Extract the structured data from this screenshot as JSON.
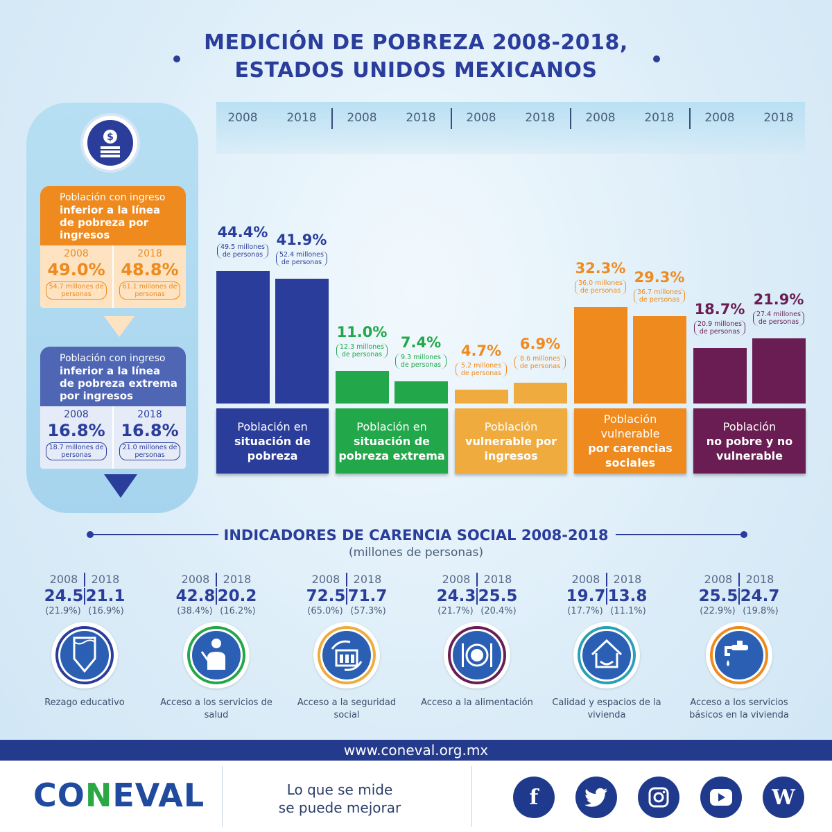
{
  "title": {
    "line1": "MEDICIÓN DE POBREZA 2008-2018,",
    "line2": "ESTADOS UNIDOS MEXICANOS"
  },
  "left_panel": {
    "icon": "money-coin-icon",
    "card1": {
      "label_normal": "Población con ingreso",
      "label_bold": "inferior a la línea de pobreza por ingresos",
      "years": [
        "2008",
        "2018"
      ],
      "pcts": [
        "49.0%",
        "48.8%"
      ],
      "millions": [
        "54.7 millones de personas",
        "61.1 millones de personas"
      ],
      "color": "#ee8a1e"
    },
    "card2": {
      "label_normal": "Población con ingreso",
      "label_bold": "inferior a la línea de pobreza extrema por ingresos",
      "years": [
        "2008",
        "2018"
      ],
      "pcts": [
        "16.8%",
        "16.8%"
      ],
      "millions": [
        "18.7 millones de personas",
        "21.0 millones de personas"
      ],
      "color": "#4e66b4"
    }
  },
  "chart_data": {
    "type": "bar",
    "categories": [
      "Población en situación de pobreza",
      "Población en situación de pobreza extrema",
      "Población vulnerable por ingresos",
      "Población vulnerable por carencias sociales",
      "Población no pobre y no vulnerable"
    ],
    "x_years": [
      "2008",
      "2018"
    ],
    "series": [
      {
        "name": "2008",
        "values": [
          44.4,
          11.0,
          4.7,
          32.3,
          18.7
        ],
        "millions": [
          49.5,
          12.3,
          5.2,
          36.0,
          20.9
        ]
      },
      {
        "name": "2018",
        "values": [
          41.9,
          7.4,
          6.9,
          29.3,
          21.9
        ],
        "millions": [
          52.4,
          9.3,
          8.6,
          36.7,
          27.4
        ]
      }
    ],
    "unit": "%",
    "ylim": [
      0,
      50
    ],
    "colors": [
      "#2a3d9a",
      "#22a74a",
      "#efab3e",
      "#ee8a1e",
      "#6a1d52"
    ],
    "pct_labels": [
      [
        "44.4%",
        "41.9%"
      ],
      [
        "11.0%",
        "7.4%"
      ],
      [
        "4.7%",
        "6.9%"
      ],
      [
        "32.3%",
        "29.3%"
      ],
      [
        "18.7%",
        "21.9%"
      ]
    ],
    "mill_labels": [
      [
        "49.5 millones de personas",
        "52.4 millones de personas"
      ],
      [
        "12.3 millones de personas",
        "9.3 millones de personas"
      ],
      [
        "5.2 millones de personas",
        "8.6 millones de personas"
      ],
      [
        "36.0 millones de personas",
        "36.7 millones de personas"
      ],
      [
        "20.9 millones de personas",
        "27.4 millones de personas"
      ]
    ],
    "cat_line1": [
      "Población en",
      "Población en",
      "Población",
      "Población vulnerable",
      "Población"
    ],
    "cat_line2": [
      "situación de pobreza",
      "situación de pobreza extrema",
      "vulnerable por ingresos",
      "por carencias sociales",
      "no pobre y no vulnerable"
    ]
  },
  "indicators": {
    "title": "INDICADORES DE CARENCIA SOCIAL 2008-2018",
    "subtitle": "(millones de personas)",
    "items": [
      {
        "name": "Rezago educativo",
        "y2008": "24.5",
        "y2018": "21.1",
        "p2008": "(21.9%)",
        "p2018": "(16.9%)",
        "icon": "pencil-icon",
        "ring": "#2a3d9a"
      },
      {
        "name": "Acceso a los servicios de salud",
        "y2008": "42.8",
        "y2018": "20.2",
        "p2008": "(38.4%)",
        "p2018": "(16.2%)",
        "icon": "doctor-icon",
        "ring": "#22a74a"
      },
      {
        "name": "Acceso a la seguridad social",
        "y2008": "72.5",
        "y2018": "71.7",
        "p2008": "(65.0%)",
        "p2018": "(57.3%)",
        "icon": "social-security-icon",
        "ring": "#efab3e"
      },
      {
        "name": "Acceso a la alimentación",
        "y2008": "24.3",
        "y2018": "25.5",
        "p2008": "(21.7%)",
        "p2018": "(20.4%)",
        "icon": "plate-icon",
        "ring": "#6a1d52"
      },
      {
        "name": "Calidad y espacios de la vivienda",
        "y2008": "19.7",
        "y2018": "13.8",
        "p2008": "(17.7%)",
        "p2018": "(11.1%)",
        "icon": "house-hands-icon",
        "ring": "#2aa0b8"
      },
      {
        "name": "Acceso a los servicios básicos en la vivienda",
        "y2008": "25.5",
        "y2018": "24.7",
        "p2008": "(22.9%)",
        "p2018": "(19.8%)",
        "icon": "water-tap-icon",
        "ring": "#ee8a1e"
      }
    ],
    "years": [
      "2008",
      "2018"
    ]
  },
  "footer": {
    "url": "www.coneval.org.mx",
    "logo": "CONEVAL",
    "slogan_line1": "Lo que se mide",
    "slogan_line2": "se puede mejorar",
    "social": [
      "facebook-icon",
      "twitter-icon",
      "instagram-icon",
      "youtube-icon",
      "wordpress-icon"
    ]
  }
}
